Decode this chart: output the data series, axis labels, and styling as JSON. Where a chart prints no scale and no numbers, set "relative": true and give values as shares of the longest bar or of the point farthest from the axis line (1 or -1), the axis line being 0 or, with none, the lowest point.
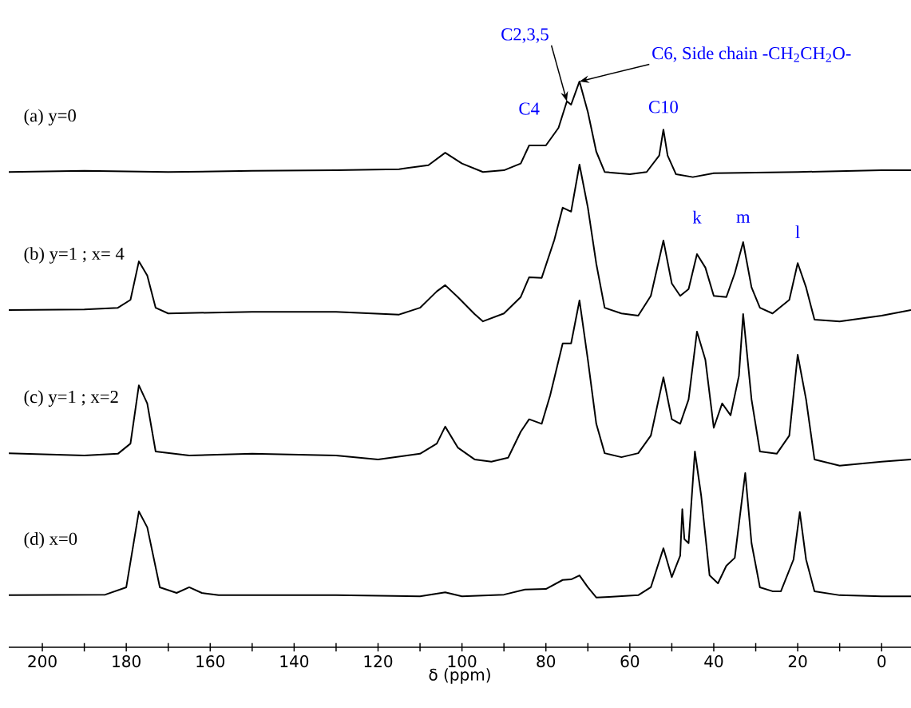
{
  "chart_data": {
    "type": "line",
    "relative": true,
    "xlabel": "δ (ppm)",
    "xlim": [
      208,
      -7
    ],
    "xticks": [
      200,
      {
        "value": 190,
        "label": null
      },
      180,
      {
        "value": 170,
        "label": null
      },
      160,
      {
        "value": 150,
        "label": null
      },
      140,
      {
        "value": 130,
        "label": null
      },
      120,
      {
        "value": 110,
        "label": null
      },
      100,
      {
        "value": 90,
        "label": null
      },
      80,
      {
        "value": 70,
        "label": null
      },
      60,
      {
        "value": 50,
        "label": null
      },
      40,
      {
        "value": 30,
        "label": null
      },
      20,
      {
        "value": 10,
        "label": null
      },
      0
    ],
    "marker": "none",
    "line_style": "solid",
    "tick_labels": "x",
    "series": [
      {
        "name": "(a)  y=0",
        "color": "#000000",
        "x": [
          208,
          190,
          170,
          150,
          130,
          115,
          108,
          104,
          100,
          95,
          90,
          86,
          84,
          80,
          77,
          75,
          74,
          72,
          70,
          68,
          66,
          60,
          56,
          53,
          52,
          51,
          49,
          45,
          40,
          30,
          20,
          0,
          -7
        ],
        "values": [
          0.84,
          0.842,
          0.84,
          0.842,
          0.843,
          0.845,
          0.852,
          0.874,
          0.855,
          0.84,
          0.843,
          0.855,
          0.887,
          0.887,
          0.918,
          0.965,
          0.959,
          1.0,
          0.946,
          0.876,
          0.84,
          0.836,
          0.84,
          0.869,
          0.915,
          0.869,
          0.836,
          0.831,
          0.838,
          0.839,
          0.84,
          0.843,
          0.843
        ]
      },
      {
        "name": "(b) y=1 ; x= 4",
        "color": "#000000",
        "x": [
          208,
          190,
          182,
          179,
          177,
          175,
          173,
          170,
          150,
          130,
          115,
          110,
          106,
          104,
          101,
          97,
          95,
          90,
          86,
          84,
          81,
          78,
          76,
          74,
          72,
          70,
          68,
          66,
          62,
          58,
          55,
          52,
          50,
          48,
          46,
          44,
          42,
          40,
          37,
          35,
          33,
          31,
          29,
          26,
          22,
          20,
          18,
          16,
          10,
          0,
          -7
        ],
        "values": [
          0.596,
          0.597,
          0.6,
          0.614,
          0.682,
          0.657,
          0.6,
          0.59,
          0.593,
          0.593,
          0.588,
          0.6,
          0.629,
          0.64,
          0.619,
          0.589,
          0.576,
          0.59,
          0.619,
          0.654,
          0.653,
          0.72,
          0.777,
          0.77,
          0.853,
          0.777,
          0.678,
          0.6,
          0.59,
          0.586,
          0.621,
          0.719,
          0.643,
          0.621,
          0.633,
          0.695,
          0.671,
          0.621,
          0.619,
          0.661,
          0.716,
          0.636,
          0.6,
          0.59,
          0.614,
          0.679,
          0.636,
          0.579,
          0.576,
          0.586,
          0.596
        ]
      },
      {
        "name": "(c) y=1 ; x=2",
        "color": "#000000",
        "x": [
          208,
          190,
          182,
          179,
          177,
          175,
          173,
          165,
          150,
          130,
          120,
          110,
          106,
          104,
          101,
          97,
          93,
          89,
          86,
          84,
          81,
          79,
          76,
          74,
          72,
          70,
          68,
          66,
          62,
          58,
          55,
          52,
          50,
          48,
          46,
          44,
          42,
          40,
          38,
          36,
          34,
          33,
          31,
          29,
          25,
          22,
          20,
          18,
          16,
          10,
          0,
          -7
        ],
        "values": [
          0.343,
          0.339,
          0.342,
          0.36,
          0.463,
          0.431,
          0.346,
          0.339,
          0.342,
          0.339,
          0.332,
          0.342,
          0.36,
          0.39,
          0.353,
          0.332,
          0.328,
          0.335,
          0.381,
          0.403,
          0.395,
          0.445,
          0.537,
          0.537,
          0.613,
          0.508,
          0.395,
          0.343,
          0.336,
          0.343,
          0.374,
          0.477,
          0.403,
          0.395,
          0.438,
          0.558,
          0.508,
          0.388,
          0.431,
          0.41,
          0.48,
          0.589,
          0.438,
          0.346,
          0.342,
          0.374,
          0.517,
          0.438,
          0.332,
          0.321,
          0.328,
          0.332
        ]
      },
      {
        "name": "(d) x=0",
        "color": "#000000",
        "x": [
          208,
          185,
          180,
          177,
          175,
          172,
          168,
          165,
          162,
          158,
          130,
          110,
          104,
          100,
          90,
          85,
          80,
          76,
          74,
          72,
          70,
          68,
          65,
          58,
          55,
          52,
          50,
          48,
          47.5,
          47,
          46,
          44.5,
          43,
          41,
          39,
          37,
          35,
          32.5,
          31,
          29,
          26,
          24,
          21,
          19.5,
          18,
          16,
          10,
          0,
          -7
        ],
        "values": [
          0.092,
          0.093,
          0.106,
          0.24,
          0.212,
          0.106,
          0.096,
          0.106,
          0.096,
          0.092,
          0.092,
          0.09,
          0.097,
          0.09,
          0.093,
          0.102,
          0.103,
          0.119,
          0.12,
          0.127,
          0.106,
          0.088,
          0.089,
          0.092,
          0.106,
          0.175,
          0.124,
          0.162,
          0.244,
          0.191,
          0.184,
          0.346,
          0.268,
          0.127,
          0.113,
          0.144,
          0.158,
          0.308,
          0.184,
          0.106,
          0.099,
          0.099,
          0.155,
          0.239,
          0.155,
          0.099,
          0.092,
          0.09,
          0.09
        ]
      }
    ],
    "annotations": [
      {
        "text": "C4",
        "x": 84,
        "y": 0.887
      },
      {
        "text": "C2,3,5",
        "x": 75,
        "y": 0.965
      },
      {
        "text": "C6, Side chain -CH$_{2}$CH$_{2}$O-",
        "x": 72,
        "y": 1.0
      },
      {
        "text": "C10",
        "x": 52,
        "y": 0.915
      },
      {
        "text": "k",
        "x": 44,
        "y": 0.695
      },
      {
        "text": "m",
        "x": 33,
        "y": 0.716
      },
      {
        "text": "l",
        "x": 20,
        "y": 0.679
      }
    ]
  }
}
